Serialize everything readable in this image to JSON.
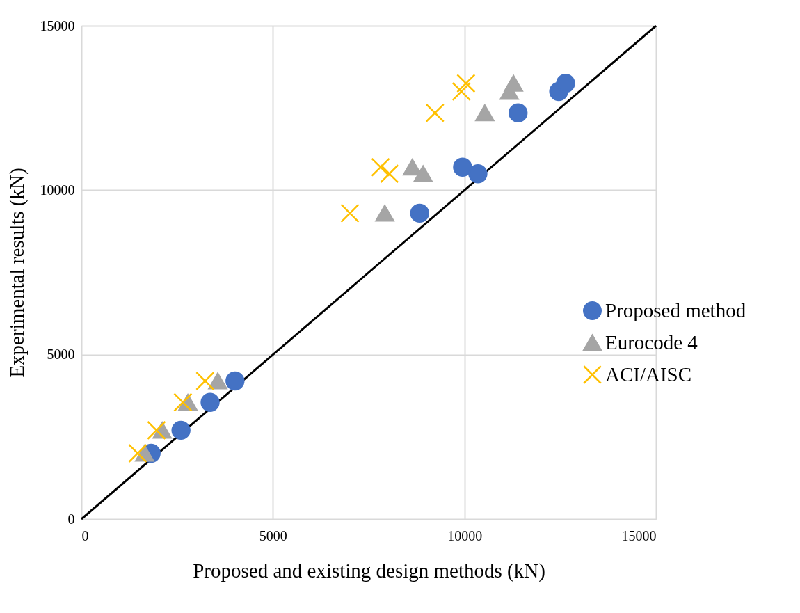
{
  "chart_data": {
    "type": "scatter",
    "xlabel": "Proposed and existing design methods (kN)",
    "ylabel": "Experimental results (kN)",
    "xlim": [
      0,
      15000
    ],
    "ylim": [
      0,
      15000
    ],
    "xticks": [
      0,
      5000,
      10000,
      15000
    ],
    "yticks": [
      0,
      5000,
      10000,
      15000
    ],
    "grid": true,
    "legend": "right",
    "series": [
      {
        "name": "Proposed method",
        "color": "#4472c4",
        "marker": "circle",
        "x": [
          1820,
          2600,
          3360,
          4010,
          8830,
          9950,
          10350,
          11400,
          12460,
          12640
        ],
        "values": [
          2000,
          2700,
          3550,
          4200,
          9300,
          10700,
          10500,
          12350,
          13000,
          13250
        ]
      },
      {
        "name": "Eurocode 4",
        "color": "#a5a5a5",
        "marker": "triangle",
        "x": [
          1650,
          2110,
          2780,
          3560,
          7920,
          8640,
          8920,
          10530,
          11170,
          11280
        ],
        "values": [
          2000,
          2700,
          3550,
          4200,
          9300,
          10700,
          10500,
          12350,
          13000,
          13250
        ]
      },
      {
        "name": "ACI/AISC",
        "color": "#ffc000",
        "marker": "cross",
        "x": [
          1470,
          1960,
          2650,
          3230,
          7010,
          7810,
          8040,
          9230,
          9920,
          10040
        ],
        "values": [
          2000,
          2700,
          3550,
          4200,
          9300,
          10700,
          10500,
          12350,
          13000,
          13250
        ]
      },
      {
        "type": "line",
        "color": "#000000",
        "line_style": "solid",
        "x": [
          0,
          15000
        ],
        "values": [
          0,
          15000
        ]
      }
    ]
  }
}
